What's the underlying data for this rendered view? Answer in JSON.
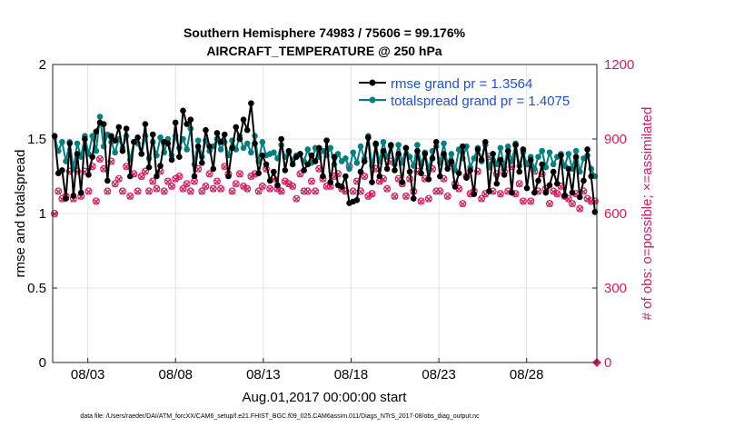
{
  "chart_data": {
    "type": "line",
    "title_line1": "Southern Hemisphere 74983 / 75606 = 99.176%",
    "title_line2": "AIRCRAFT_TEMPERATURE @ 250 hPa",
    "ylabel_left": "rmse and totalspread",
    "ylabel_right": "# of obs: o=possible; ×=assimilated",
    "xlabel": "Aug.01,2017 00:00:00 start",
    "footer": "data file: /Users/raeder/DAI/ATM_forcXX/CAM6_setup/f.e21.FHIST_BGC.f09_025.CAM6assim.011/Diags_NTrS_2017-08/obs_diag_output.nc",
    "xlim": [
      1.0,
      32.0
    ],
    "ylim_left": [
      0,
      2
    ],
    "ylim_right": [
      0,
      1200
    ],
    "left_ticks": [
      "0",
      "0.5",
      "1",
      "1.5",
      "2"
    ],
    "left_tick_values": [
      0,
      0.5,
      1,
      1.5,
      2
    ],
    "right_ticks": [
      "0",
      "300",
      "600",
      "900",
      "1200"
    ],
    "right_tick_values": [
      0,
      300,
      600,
      900,
      1200
    ],
    "x_ticks": [
      "08/03",
      "08/08",
      "08/13",
      "08/18",
      "08/23",
      "08/28"
    ],
    "x_tick_values": [
      3,
      8,
      13,
      18,
      23,
      28
    ],
    "colors": {
      "rmse": "#000000",
      "spread": "#008080",
      "obs": "#d81b60",
      "legend_text": "#1f4fe0"
    },
    "legend": {
      "rmse_label": "rmse grand pr = 1.3564",
      "spread_label": "totalspread grand pr = 1.4075"
    },
    "series": [
      {
        "name": "rmse",
        "values": [
          1.52,
          1.27,
          1.29,
          1.1,
          1.47,
          1.12,
          1.4,
          1.14,
          1.5,
          1.26,
          1.38,
          1.55,
          1.61,
          1.6,
          1.22,
          1.52,
          1.49,
          1.58,
          1.42,
          1.57,
          1.25,
          1.48,
          1.51,
          1.4,
          1.6,
          1.31,
          1.53,
          1.25,
          1.32,
          1.48,
          1.47,
          1.36,
          1.61,
          1.38,
          1.69,
          1.6,
          1.63,
          1.25,
          1.45,
          1.34,
          1.56,
          1.45,
          1.3,
          1.54,
          1.48,
          1.53,
          1.25,
          1.44,
          1.58,
          1.5,
          1.63,
          1.56,
          1.74,
          1.47,
          1.27,
          1.39,
          1.33,
          1.22,
          1.28,
          1.19,
          1.5,
          1.29,
          1.42,
          1.33,
          1.38,
          1.4,
          1.29,
          1.33,
          1.39,
          1.35,
          1.44,
          1.25,
          1.49,
          1.21,
          1.38,
          1.19,
          1.18,
          1.25,
          1.07,
          1.08,
          1.09,
          1.28,
          1.35,
          1.51,
          1.21,
          1.47,
          1.25,
          1.42,
          1.3,
          1.46,
          1.29,
          1.4,
          1.21,
          1.44,
          1.28,
          1.1,
          1.42,
          1.27,
          1.4,
          1.23,
          1.37,
          1.48,
          1.25,
          1.4,
          1.3,
          1.35,
          1.18,
          1.27,
          1.45,
          1.24,
          1.29,
          1.13,
          1.43,
          1.36,
          1.48,
          1.15,
          1.4,
          1.2,
          1.36,
          1.26,
          1.42,
          1.14,
          1.46,
          1.28,
          1.43,
          1.17,
          1.36,
          1.14,
          1.22,
          1.33,
          1.14,
          1.19,
          1.28,
          1.2,
          1.39,
          1.12,
          1.3,
          1.14,
          1.38,
          1.11,
          1.22,
          1.43,
          1.25,
          1.01
        ],
        "obs_possible": [
          600,
          690,
          660,
          670,
          770,
          660,
          770,
          670,
          770,
          690,
          790,
          650,
          820,
          780,
          690,
          810,
          720,
          740,
          690,
          790,
          670,
          760,
          690,
          750,
          770,
          690,
          730,
          700,
          770,
          690,
          730,
          710,
          740,
          750,
          700,
          720,
          690,
          730,
          780,
          690,
          710,
          760,
          700,
          730,
          700,
          790,
          760,
          690,
          720,
          760,
          710,
          700,
          750,
          760,
          690,
          710,
          780,
          700,
          740,
          700,
          690,
          730,
          720,
          710,
          660,
          760,
          690,
          690,
          730,
          690,
          780,
          740,
          710,
          710,
          750,
          760,
          700,
          690,
          790,
          690,
          730,
          690,
          750,
          670,
          680,
          780,
          730,
          740,
          700,
          810,
          670,
          740,
          720,
          670,
          740,
          690,
          770,
          650,
          740,
          660,
          780,
          690,
          690,
          740,
          670,
          800,
          720,
          700,
          640,
          750,
          680,
          690,
          770,
          660,
          680,
          830,
          690,
          760,
          680,
          770,
          690,
          790,
          680,
          720,
          650,
          800,
          650,
          770,
          690,
          760,
          700,
          640,
          690,
          680,
          710,
          670,
          660,
          640,
          680,
          620,
          690,
          660,
          650,
          650
        ],
        "obs_assimilated": [
          598,
          688,
          657,
          667,
          767,
          657,
          768,
          668,
          768,
          688,
          788,
          648,
          818,
          778,
          688,
          808,
          718,
          738,
          688,
          788,
          668,
          758,
          688,
          748,
          768,
          688,
          728,
          698,
          768,
          688,
          728,
          708,
          738,
          748,
          698,
          718,
          688,
          728,
          778,
          688,
          708,
          758,
          698,
          728,
          698,
          788,
          758,
          688,
          718,
          758,
          708,
          698,
          748,
          758,
          688,
          708,
          778,
          698,
          738,
          698,
          688,
          728,
          718,
          708,
          658,
          758,
          688,
          688,
          728,
          688,
          778,
          738,
          708,
          708,
          748,
          758,
          698,
          688,
          788,
          688,
          728,
          688,
          748,
          668,
          678,
          778,
          728,
          738,
          698,
          808,
          668,
          738,
          718,
          668,
          738,
          688,
          768,
          648,
          738,
          658,
          778,
          688,
          688,
          738,
          668,
          798,
          718,
          698,
          638,
          748,
          678,
          688,
          768,
          658,
          678,
          828,
          688,
          758,
          678,
          768,
          688,
          788,
          678,
          718,
          648,
          798,
          648,
          768,
          688,
          758,
          698,
          638,
          688,
          678,
          708,
          668,
          658,
          638,
          678,
          618,
          688,
          658,
          648,
          648
        ]
      },
      {
        "name": "totalspread",
        "values": [
          1.52,
          1.42,
          1.48,
          1.35,
          1.48,
          1.3,
          1.47,
          1.38,
          1.52,
          1.4,
          1.52,
          1.42,
          1.65,
          1.45,
          1.53,
          1.48,
          1.41,
          1.5,
          1.44,
          1.52,
          1.36,
          1.48,
          1.47,
          1.4,
          1.52,
          1.37,
          1.48,
          1.39,
          1.51,
          1.41,
          1.5,
          1.39,
          1.52,
          1.44,
          1.5,
          1.43,
          1.57,
          1.33,
          1.49,
          1.38,
          1.49,
          1.42,
          1.45,
          1.5,
          1.43,
          1.48,
          1.39,
          1.49,
          1.43,
          1.52,
          1.44,
          1.47,
          1.41,
          1.52,
          1.35,
          1.48,
          1.39,
          1.4,
          1.41,
          1.37,
          1.46,
          1.38,
          1.41,
          1.36,
          1.39,
          1.4,
          1.35,
          1.43,
          1.34,
          1.44,
          1.38,
          1.42,
          1.39,
          1.44,
          1.33,
          1.4,
          1.35,
          1.37,
          1.3,
          1.41,
          1.34,
          1.45,
          1.37,
          1.52,
          1.32,
          1.46,
          1.35,
          1.48,
          1.38,
          1.45,
          1.33,
          1.46,
          1.34,
          1.44,
          1.38,
          1.32,
          1.46,
          1.33,
          1.41,
          1.3,
          1.42,
          1.45,
          1.34,
          1.47,
          1.33,
          1.4,
          1.29,
          1.43,
          1.37,
          1.45,
          1.31,
          1.37,
          1.44,
          1.35,
          1.46,
          1.31,
          1.4,
          1.33,
          1.44,
          1.31,
          1.45,
          1.35,
          1.47,
          1.32,
          1.41,
          1.33,
          1.38,
          1.3,
          1.38,
          1.42,
          1.31,
          1.41,
          1.33,
          1.38,
          1.4,
          1.32,
          1.4,
          1.3,
          1.42,
          1.28,
          1.37,
          1.39,
          1.3,
          1.25
        ]
      }
    ]
  }
}
